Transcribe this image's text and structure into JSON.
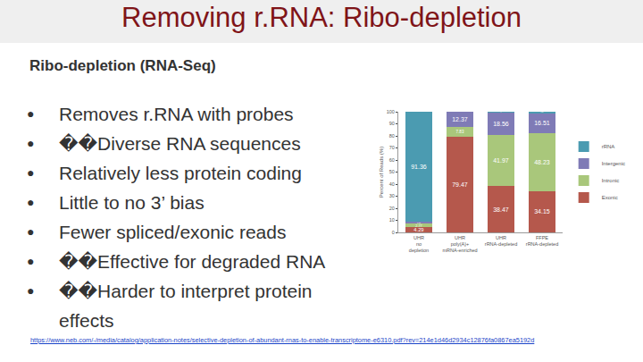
{
  "slide": {
    "title": "Removing r.RNA: Ribo-depletion",
    "heading": "Ribo-depletion (RNA-Seq)",
    "bullets": [
      "Removes r.RNA with probes",
      "��Diverse RNA sequences",
      "Relatively less protein coding",
      "Little to no 3’ bias",
      "Fewer spliced/exonic reads",
      "��Effective for degraded RNA",
      "��Harder to interpret protein effects"
    ],
    "source": "https://www.neb.com/-/media/catalog/application-notes/selective-depletion-of-abundant-rnas-to-enable-transcriptome-e6310.pdf?rev=214e1d46d2934c12876fa0867ea5192d"
  },
  "chart_data": {
    "type": "bar",
    "stacked": true,
    "ylabel": "Percent of Reads (%)",
    "categories": [
      "UHR no depletion",
      "UHR poly(A)+ mRNA-enriched",
      "UHR rRNA-depleted",
      "FFPE rRNA-depleted"
    ],
    "series": [
      {
        "name": "Exonic",
        "color": "#b5584c",
        "values": [
          4.29,
          79.47,
          38.47,
          34.15
        ]
      },
      {
        "name": "Intronic",
        "color": "#a9c77b",
        "values": [
          2.77,
          7.83,
          41.97,
          48.23
        ]
      },
      {
        "name": "Intergenic",
        "color": "#7f7bb6",
        "values": [
          1.58,
          12.37,
          18.56,
          16.51
        ]
      },
      {
        "name": "rRNA",
        "color": "#4b9bb1",
        "values": [
          91.36,
          0.33,
          1.0,
          1.11
        ]
      }
    ],
    "ylim": [
      0,
      100
    ],
    "yticks": [
      0,
      10,
      20,
      30,
      40,
      50,
      60,
      70,
      80,
      90,
      100
    ],
    "grid": false,
    "legend": "right",
    "data_labels": true
  }
}
